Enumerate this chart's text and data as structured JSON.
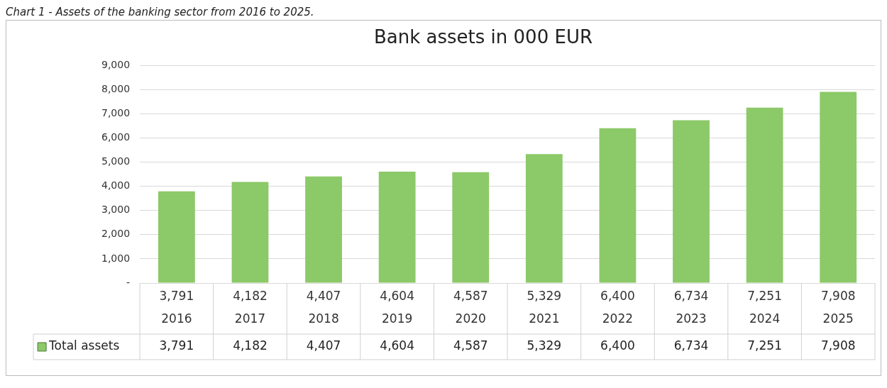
{
  "chart_data": {
    "type": "bar",
    "title": "Bank assets in 000 EUR",
    "annotations": [
      "Chart 1 - Assets of the banking sector from 2016 to 2025."
    ],
    "categories": [
      "2016",
      "2017",
      "2018",
      "2019",
      "2020",
      "2021",
      "2022",
      "2023",
      "2024",
      "2025"
    ],
    "series": [
      {
        "name": "Total assets",
        "color": "#8cc968",
        "values": [
          3791,
          4182,
          4407,
          4604,
          4587,
          5329,
          6400,
          6734,
          7251,
          7908
        ],
        "value_labels": [
          "3,791",
          "4,182",
          "4,407",
          "4,604",
          "4,587",
          "5,329",
          "6,400",
          "6,734",
          "7,251",
          "7,908"
        ]
      }
    ],
    "ylim": [
      0,
      9000
    ],
    "yticks": [
      {
        "value": 0,
        "label": "-"
      },
      {
        "value": 1000,
        "label": "1,000"
      },
      {
        "value": 2000,
        "label": "2,000"
      },
      {
        "value": 3000,
        "label": "3,000"
      },
      {
        "value": 4000,
        "label": "4,000"
      },
      {
        "value": 5000,
        "label": "5,000"
      },
      {
        "value": 6000,
        "label": "6,000"
      },
      {
        "value": 7000,
        "label": "7,000"
      },
      {
        "value": 8000,
        "label": "8,000"
      },
      {
        "value": 9000,
        "label": "9,000"
      }
    ],
    "grid": "y",
    "legend": "bottom"
  }
}
